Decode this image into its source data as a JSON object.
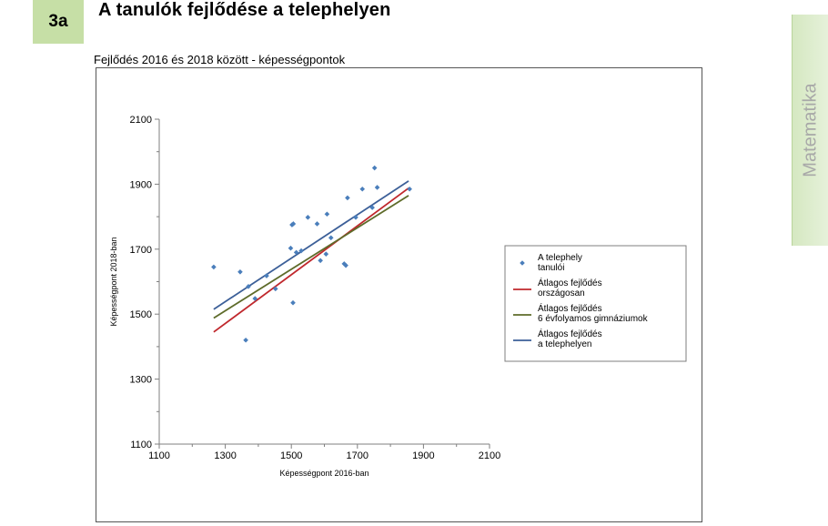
{
  "header": {
    "badge": "3a",
    "title": "A tanulók fejlődése a telephelyen"
  },
  "side_tab": {
    "label": "Matematika"
  },
  "chart_data": {
    "type": "scatter",
    "title": "Fejlődés 2016 és 2018 között - képességpontok",
    "xlabel": "Képességpont 2016-ban",
    "ylabel": "Képességpont 2018-ban",
    "xlim": [
      1100,
      2100
    ],
    "ylim": [
      1100,
      2100
    ],
    "xticks": [
      "1100",
      "1300",
      "1500",
      "1700",
      "1900",
      "2100"
    ],
    "yticks": [
      "1100",
      "1300",
      "1500",
      "1700",
      "1900",
      "2100"
    ],
    "grid": false,
    "legend_position": "right",
    "colors": {
      "points": "#4a7ebb",
      "orszagos": "#c0282d",
      "gimnazium": "#5e6b2a",
      "telephely": "#3c5f98"
    },
    "scatter": {
      "name": "A telephely tanulói",
      "points": [
        [
          1265,
          1645
        ],
        [
          1345,
          1630
        ],
        [
          1362,
          1420
        ],
        [
          1370,
          1585
        ],
        [
          1390,
          1548
        ],
        [
          1425,
          1618
        ],
        [
          1452,
          1578
        ],
        [
          1498,
          1703
        ],
        [
          1502,
          1775
        ],
        [
          1505,
          1535
        ],
        [
          1506,
          1778
        ],
        [
          1515,
          1690
        ],
        [
          1530,
          1695
        ],
        [
          1550,
          1798
        ],
        [
          1578,
          1778
        ],
        [
          1588,
          1665
        ],
        [
          1605,
          1685
        ],
        [
          1608,
          1808
        ],
        [
          1620,
          1735
        ],
        [
          1660,
          1655
        ],
        [
          1665,
          1650
        ],
        [
          1670,
          1858
        ],
        [
          1695,
          1798
        ],
        [
          1715,
          1885
        ],
        [
          1745,
          1828
        ],
        [
          1752,
          1950
        ],
        [
          1760,
          1890
        ],
        [
          1858,
          1885
        ]
      ]
    },
    "lines": [
      {
        "key": "orszagos",
        "name": "Átlagos fejlődés országosan",
        "from": [
          1265,
          1445
        ],
        "to": [
          1855,
          1888
        ]
      },
      {
        "key": "gimnazium",
        "name": "Átlagos fejlődés 6 évfolyamos gimnáziumok",
        "from": [
          1265,
          1488
        ],
        "to": [
          1855,
          1865
        ]
      },
      {
        "key": "telephely",
        "name": "Átlagos fejlődés a telephelyen",
        "from": [
          1265,
          1515
        ],
        "to": [
          1855,
          1910
        ]
      }
    ],
    "legend": [
      {
        "key": "points",
        "line1": "A telephely",
        "line2": "tanulói"
      },
      {
        "key": "orszagos",
        "line1": "Átlagos fejlődés",
        "line2": "országosan"
      },
      {
        "key": "gimnazium",
        "line1": "Átlagos fejlődés",
        "line2": "6 évfolyamos gimnáziumok"
      },
      {
        "key": "telephely",
        "line1": "Átlagos fejlődés",
        "line2": "a telephelyen"
      }
    ]
  }
}
